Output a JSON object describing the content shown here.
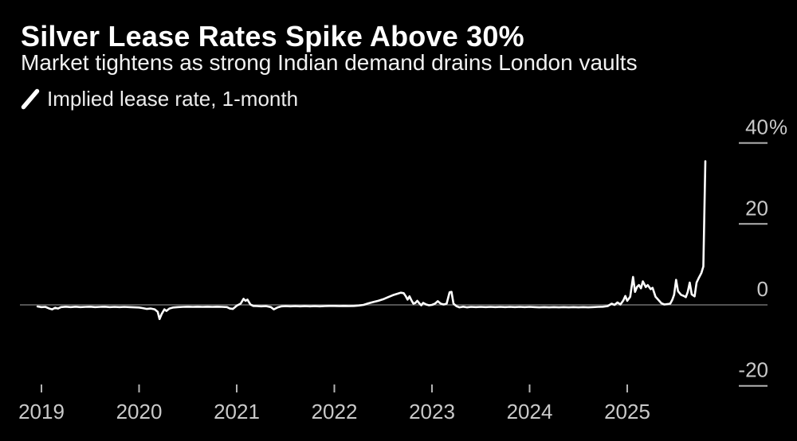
{
  "colors": {
    "background": "#000000",
    "title_text": "#ffffff",
    "subtitle_text": "#f2f2f2",
    "legend_text": "#ededed",
    "axis_text": "#c9c9c9",
    "tick_mark": "#b3b3b3",
    "zero_baseline": "#6f6f6f",
    "series_line": "#ffffff"
  },
  "chart_data": {
    "type": "line",
    "title": "Silver Lease Rates Spike Above 30%",
    "subtitle": "Market tightens as strong Indian demand drains London vaults",
    "legend_label": "Implied lease rate, 1-month",
    "legend_position": "top-left",
    "legend_marker": "diagonal-line-sample",
    "grid": "off",
    "zero_baseline": true,
    "x_axis": {
      "ticks": [
        "2019",
        "2020",
        "2021",
        "2022",
        "2023",
        "2024",
        "2025"
      ],
      "tick_values": [
        2019,
        2020,
        2021,
        2022,
        2023,
        2024,
        2025
      ],
      "range": [
        2018.78,
        2026.4
      ]
    },
    "y_axis": {
      "unit": "%",
      "side": "right",
      "range": [
        -25,
        43
      ],
      "ticks": [
        {
          "value": 40,
          "label": "40",
          "suffix": "%"
        },
        {
          "value": 20,
          "label": "20",
          "suffix": ""
        },
        {
          "value": 0,
          "label": "0",
          "suffix": ""
        },
        {
          "value": -20,
          "label": "-20",
          "suffix": ""
        }
      ]
    },
    "peak_value_pct": 35.5,
    "series": [
      {
        "name": "Implied lease rate, 1-month",
        "color": "#ffffff",
        "points": [
          [
            2018.96,
            -0.4
          ],
          [
            2019.0,
            -0.55
          ],
          [
            2019.04,
            -0.5
          ],
          [
            2019.08,
            -0.9
          ],
          [
            2019.11,
            -1.1
          ],
          [
            2019.14,
            -0.7
          ],
          [
            2019.17,
            -0.9
          ],
          [
            2019.2,
            -0.55
          ],
          [
            2019.25,
            -0.45
          ],
          [
            2019.3,
            -0.55
          ],
          [
            2019.35,
            -0.45
          ],
          [
            2019.4,
            -0.55
          ],
          [
            2019.45,
            -0.5
          ],
          [
            2019.5,
            -0.45
          ],
          [
            2019.55,
            -0.55
          ],
          [
            2019.6,
            -0.5
          ],
          [
            2019.65,
            -0.45
          ],
          [
            2019.7,
            -0.55
          ],
          [
            2019.75,
            -0.5
          ],
          [
            2019.8,
            -0.55
          ],
          [
            2019.85,
            -0.5
          ],
          [
            2019.9,
            -0.55
          ],
          [
            2019.95,
            -0.6
          ],
          [
            2020.0,
            -0.65
          ],
          [
            2020.04,
            -0.8
          ],
          [
            2020.08,
            -1.0
          ],
          [
            2020.12,
            -0.9
          ],
          [
            2020.16,
            -1.1
          ],
          [
            2020.19,
            -1.7
          ],
          [
            2020.21,
            -3.5
          ],
          [
            2020.23,
            -2.3
          ],
          [
            2020.26,
            -1.1
          ],
          [
            2020.28,
            -1.5
          ],
          [
            2020.31,
            -0.9
          ],
          [
            2020.35,
            -0.65
          ],
          [
            2020.4,
            -0.55
          ],
          [
            2020.45,
            -0.5
          ],
          [
            2020.5,
            -0.45
          ],
          [
            2020.55,
            -0.5
          ],
          [
            2020.6,
            -0.45
          ],
          [
            2020.65,
            -0.5
          ],
          [
            2020.7,
            -0.45
          ],
          [
            2020.75,
            -0.5
          ],
          [
            2020.8,
            -0.45
          ],
          [
            2020.85,
            -0.5
          ],
          [
            2020.9,
            -0.55
          ],
          [
            2020.93,
            -0.9
          ],
          [
            2020.96,
            -1.0
          ],
          [
            2020.98,
            -0.6
          ],
          [
            2021.0,
            -0.2
          ],
          [
            2021.04,
            0.3
          ],
          [
            2021.07,
            1.5
          ],
          [
            2021.09,
            1.0
          ],
          [
            2021.11,
            1.3
          ],
          [
            2021.14,
            0.1
          ],
          [
            2021.17,
            -0.25
          ],
          [
            2021.21,
            -0.3
          ],
          [
            2021.25,
            -0.35
          ],
          [
            2021.3,
            -0.3
          ],
          [
            2021.35,
            -0.55
          ],
          [
            2021.38,
            -1.1
          ],
          [
            2021.42,
            -0.6
          ],
          [
            2021.46,
            -0.35
          ],
          [
            2021.5,
            -0.3
          ],
          [
            2021.55,
            -0.35
          ],
          [
            2021.6,
            -0.3
          ],
          [
            2021.65,
            -0.35
          ],
          [
            2021.7,
            -0.3
          ],
          [
            2021.75,
            -0.35
          ],
          [
            2021.8,
            -0.3
          ],
          [
            2021.85,
            -0.35
          ],
          [
            2021.9,
            -0.3
          ],
          [
            2021.95,
            -0.25
          ],
          [
            2022.0,
            -0.25
          ],
          [
            2022.05,
            -0.3
          ],
          [
            2022.1,
            -0.25
          ],
          [
            2022.15,
            -0.3
          ],
          [
            2022.2,
            -0.25
          ],
          [
            2022.25,
            -0.15
          ],
          [
            2022.3,
            0.0
          ],
          [
            2022.35,
            0.4
          ],
          [
            2022.4,
            0.7
          ],
          [
            2022.45,
            1.0
          ],
          [
            2022.5,
            1.4
          ],
          [
            2022.55,
            1.9
          ],
          [
            2022.6,
            2.4
          ],
          [
            2022.64,
            2.7
          ],
          [
            2022.68,
            3.0
          ],
          [
            2022.71,
            2.9
          ],
          [
            2022.73,
            2.2
          ],
          [
            2022.75,
            1.3
          ],
          [
            2022.77,
            2.1
          ],
          [
            2022.79,
            1.1
          ],
          [
            2022.81,
            0.3
          ],
          [
            2022.83,
            0.5
          ],
          [
            2022.85,
            1.0
          ],
          [
            2022.87,
            0.4
          ],
          [
            2022.89,
            -0.1
          ],
          [
            2022.91,
            0.5
          ],
          [
            2022.94,
            0.1
          ],
          [
            2022.97,
            -0.1
          ],
          [
            2023.0,
            0.0
          ],
          [
            2023.03,
            0.3
          ],
          [
            2023.06,
            0.9
          ],
          [
            2023.09,
            0.3
          ],
          [
            2023.12,
            0.1
          ],
          [
            2023.15,
            0.3
          ],
          [
            2023.18,
            3.1
          ],
          [
            2023.2,
            3.2
          ],
          [
            2023.22,
            0.3
          ],
          [
            2023.25,
            -0.3
          ],
          [
            2023.28,
            -0.6
          ],
          [
            2023.32,
            -0.45
          ],
          [
            2023.36,
            -0.6
          ],
          [
            2023.4,
            -0.5
          ],
          [
            2023.45,
            -0.55
          ],
          [
            2023.5,
            -0.5
          ],
          [
            2023.55,
            -0.55
          ],
          [
            2023.6,
            -0.5
          ],
          [
            2023.65,
            -0.55
          ],
          [
            2023.7,
            -0.5
          ],
          [
            2023.75,
            -0.55
          ],
          [
            2023.8,
            -0.5
          ],
          [
            2023.85,
            -0.55
          ],
          [
            2023.9,
            -0.5
          ],
          [
            2023.95,
            -0.55
          ],
          [
            2024.0,
            -0.5
          ],
          [
            2024.05,
            -0.55
          ],
          [
            2024.1,
            -0.6
          ],
          [
            2024.15,
            -0.55
          ],
          [
            2024.2,
            -0.6
          ],
          [
            2024.25,
            -0.55
          ],
          [
            2024.3,
            -0.6
          ],
          [
            2024.35,
            -0.55
          ],
          [
            2024.4,
            -0.6
          ],
          [
            2024.45,
            -0.55
          ],
          [
            2024.5,
            -0.6
          ],
          [
            2024.55,
            -0.55
          ],
          [
            2024.6,
            -0.6
          ],
          [
            2024.65,
            -0.55
          ],
          [
            2024.7,
            -0.5
          ],
          [
            2024.75,
            -0.45
          ],
          [
            2024.8,
            -0.3
          ],
          [
            2024.84,
            0.3
          ],
          [
            2024.87,
            0.0
          ],
          [
            2024.9,
            0.6
          ],
          [
            2024.93,
            0.1
          ],
          [
            2024.96,
            1.1
          ],
          [
            2024.98,
            2.2
          ],
          [
            2025.0,
            1.0
          ],
          [
            2025.03,
            2.0
          ],
          [
            2025.06,
            6.9
          ],
          [
            2025.08,
            3.2
          ],
          [
            2025.1,
            4.4
          ],
          [
            2025.12,
            4.9
          ],
          [
            2025.14,
            4.1
          ],
          [
            2025.16,
            5.8
          ],
          [
            2025.19,
            4.4
          ],
          [
            2025.21,
            4.9
          ],
          [
            2025.24,
            3.9
          ],
          [
            2025.26,
            4.2
          ],
          [
            2025.29,
            2.0
          ],
          [
            2025.32,
            1.2
          ],
          [
            2025.35,
            0.4
          ],
          [
            2025.38,
            0.1
          ],
          [
            2025.41,
            0.2
          ],
          [
            2025.44,
            0.3
          ],
          [
            2025.46,
            1.2
          ],
          [
            2025.48,
            2.5
          ],
          [
            2025.5,
            6.2
          ],
          [
            2025.52,
            3.4
          ],
          [
            2025.55,
            2.5
          ],
          [
            2025.58,
            2.2
          ],
          [
            2025.6,
            1.9
          ],
          [
            2025.62,
            3.2
          ],
          [
            2025.64,
            5.5
          ],
          [
            2025.66,
            2.6
          ],
          [
            2025.69,
            2.1
          ],
          [
            2025.71,
            5.5
          ],
          [
            2025.73,
            6.5
          ],
          [
            2025.76,
            7.9
          ],
          [
            2025.78,
            9.5
          ],
          [
            2025.8,
            35.5
          ]
        ]
      }
    ]
  }
}
